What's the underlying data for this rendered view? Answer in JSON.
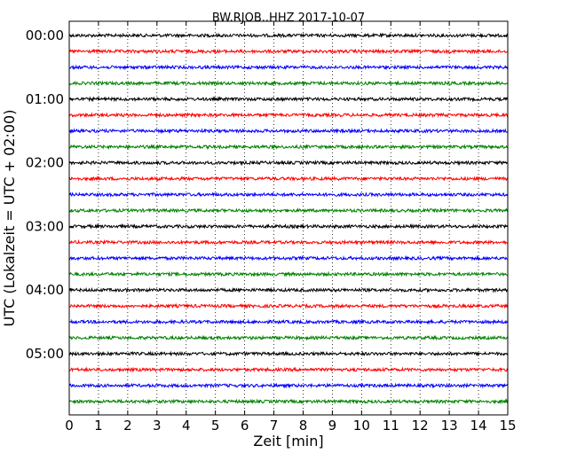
{
  "chart_data": {
    "type": "line",
    "title": "BW.RJOB..HHZ 2017-10-07",
    "xlabel": "Zeit  [min]",
    "ylabel": "UTC (Lokalzeit = UTC + 02:00)",
    "xlim": [
      0,
      15
    ],
    "x_ticks": [
      "0",
      "1",
      "2",
      "3",
      "4",
      "5",
      "6",
      "7",
      "8",
      "9",
      "10",
      "11",
      "12",
      "13",
      "14",
      "15"
    ],
    "y_tick_labels": [
      "00:00",
      "01:00",
      "02:00",
      "03:00",
      "04:00",
      "05:00"
    ],
    "grid": "vertical dotted",
    "trace_colors": [
      "#000000",
      "#ff0000",
      "#0000ff",
      "#008000"
    ],
    "series": [
      {
        "start": "00:00",
        "amplitude": 0.04
      },
      {
        "start": "00:15",
        "amplitude": 0.04
      },
      {
        "start": "00:30",
        "amplitude": 0.04
      },
      {
        "start": "00:45",
        "amplitude": 0.04
      },
      {
        "start": "01:00",
        "amplitude": 0.04
      },
      {
        "start": "01:15",
        "amplitude": 0.04
      },
      {
        "start": "01:30",
        "amplitude": 0.04
      },
      {
        "start": "01:45",
        "amplitude": 0.04
      },
      {
        "start": "02:00",
        "amplitude": 0.04
      },
      {
        "start": "02:15",
        "amplitude": 0.04
      },
      {
        "start": "02:30",
        "amplitude": 0.04
      },
      {
        "start": "02:45",
        "amplitude": 0.04
      },
      {
        "start": "03:00",
        "amplitude": 0.04
      },
      {
        "start": "03:15",
        "amplitude": 0.04
      },
      {
        "start": "03:30",
        "amplitude": 0.04
      },
      {
        "start": "03:45",
        "amplitude": 0.04
      },
      {
        "start": "04:00",
        "amplitude": 0.04
      },
      {
        "start": "04:15",
        "amplitude": 0.04
      },
      {
        "start": "04:30",
        "amplitude": 0.04
      },
      {
        "start": "04:45",
        "amplitude": 0.04
      },
      {
        "start": "05:00",
        "amplitude": 0.04
      },
      {
        "start": "05:15",
        "amplitude": 0.04
      },
      {
        "start": "05:30",
        "amplitude": 0.04
      },
      {
        "start": "05:45",
        "amplitude": 0.04
      }
    ]
  }
}
